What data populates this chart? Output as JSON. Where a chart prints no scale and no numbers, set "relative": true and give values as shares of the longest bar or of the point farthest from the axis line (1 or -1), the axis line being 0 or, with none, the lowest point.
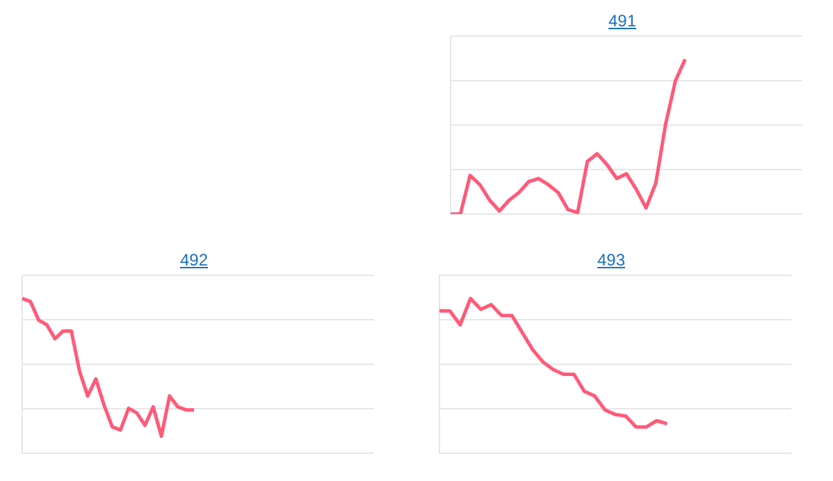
{
  "chart_data": [
    {
      "type": "line",
      "title": "491",
      "relative": true,
      "grid": "y",
      "marker": "none",
      "line_style": "solid",
      "categories": [
        null,
        null,
        null,
        null,
        null,
        null,
        null,
        null,
        null,
        null,
        null,
        null,
        null,
        null,
        null,
        null,
        null,
        null,
        null,
        null,
        null,
        null,
        null,
        null,
        null,
        null,
        null,
        null,
        null,
        null,
        null,
        null,
        null,
        null,
        null,
        null,
        null
      ],
      "series": [
        {
          "color": "#ff5a78",
          "values": [
            0,
            0,
            0.25,
            0.19,
            0.09,
            0.02,
            0.09,
            0.14,
            0.21,
            0.23,
            0.19,
            0.14,
            0.03,
            0.01,
            0.34,
            0.39,
            0.32,
            0.23,
            0.26,
            0.16,
            0.04,
            0.2,
            0.58,
            0.86,
            1,
            null,
            null,
            null,
            null,
            null,
            null,
            null,
            null,
            null,
            null,
            null,
            null
          ]
        }
      ]
    },
    {
      "type": "line",
      "title": "492",
      "relative": true,
      "grid": "y",
      "marker": "none",
      "line_style": "solid",
      "categories": [
        null,
        null,
        null,
        null,
        null,
        null,
        null,
        null,
        null,
        null,
        null,
        null,
        null,
        null,
        null,
        null,
        null,
        null,
        null,
        null,
        null,
        null,
        null,
        null,
        null,
        null,
        null,
        null,
        null,
        null,
        null,
        null,
        null,
        null,
        null,
        null,
        null,
        null,
        null,
        null,
        null,
        null,
        null,
        null
      ],
      "series": [
        {
          "color": "#ff5a78",
          "values": [
            1,
            0.98,
            0.86,
            0.83,
            0.74,
            0.79,
            0.79,
            0.53,
            0.37,
            0.48,
            0.31,
            0.17,
            0.15,
            0.29,
            0.26,
            0.18,
            0.3,
            0.11,
            0.37,
            0.3,
            0.28,
            0.28,
            null,
            null,
            null,
            null,
            null,
            null,
            null,
            null,
            null,
            null,
            null,
            null,
            null,
            null,
            null,
            null,
            null,
            null,
            null,
            null,
            null,
            null
          ]
        }
      ]
    },
    {
      "type": "line",
      "title": "493",
      "relative": true,
      "grid": "y",
      "marker": "none",
      "line_style": "solid",
      "categories": [
        null,
        null,
        null,
        null,
        null,
        null,
        null,
        null,
        null,
        null,
        null,
        null,
        null,
        null,
        null,
        null,
        null,
        null,
        null,
        null,
        null,
        null,
        null,
        null,
        null,
        null,
        null,
        null,
        null,
        null,
        null,
        null,
        null,
        null,
        null
      ],
      "series": [
        {
          "color": "#ff5a78",
          "values": [
            0.92,
            0.92,
            0.83,
            1,
            0.93,
            0.96,
            0.89,
            0.89,
            0.78,
            0.67,
            0.59,
            0.54,
            0.51,
            0.51,
            0.4,
            0.37,
            0.28,
            0.25,
            0.24,
            0.17,
            0.17,
            0.21,
            0.19,
            null,
            null,
            null,
            null,
            null,
            null,
            null,
            null,
            null,
            null,
            null,
            null
          ]
        }
      ]
    }
  ]
}
